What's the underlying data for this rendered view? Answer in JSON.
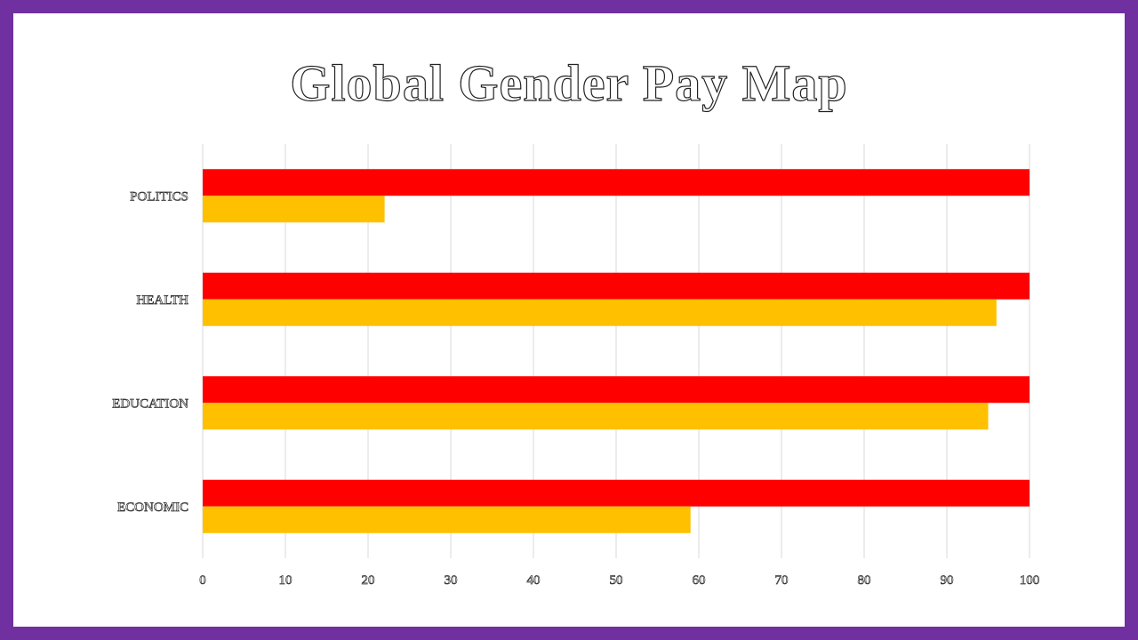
{
  "chart_data": {
    "type": "bar",
    "orientation": "horizontal",
    "title": "Global Gender Pay Map",
    "categories": [
      "POLITICS",
      "HEALTH",
      "EDUCATION",
      "ECONOMIC"
    ],
    "series": [
      {
        "color": "#ff0000",
        "values": [
          100,
          100,
          100,
          100
        ]
      },
      {
        "color": "#ffc000",
        "values": [
          22,
          96,
          95,
          59
        ]
      }
    ],
    "xlim": [
      0,
      100
    ],
    "x_ticks": [
      0,
      10,
      20,
      30,
      40,
      50,
      60,
      70,
      80,
      90,
      100
    ],
    "grid": "vertical",
    "legend": "none"
  },
  "colors": {
    "frame": "#7030a0",
    "background": "#ffffff",
    "gridline": "#d9d9d9"
  }
}
